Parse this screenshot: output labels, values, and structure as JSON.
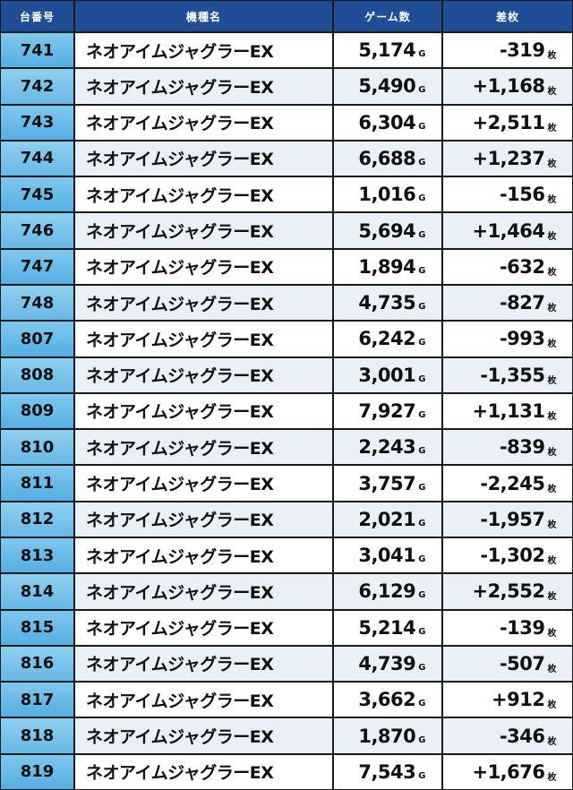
{
  "header": {
    "machine_no": "台番号",
    "model": "機種名",
    "games": "ゲーム数",
    "difference": "差枚"
  },
  "units": {
    "games": "G",
    "difference": "枚"
  },
  "rows": [
    {
      "no": "741",
      "model": "ネオアイムジャグラーEX",
      "games": "5,174",
      "diff": "-319"
    },
    {
      "no": "742",
      "model": "ネオアイムジャグラーEX",
      "games": "5,490",
      "diff": "+1,168"
    },
    {
      "no": "743",
      "model": "ネオアイムジャグラーEX",
      "games": "6,304",
      "diff": "+2,511"
    },
    {
      "no": "744",
      "model": "ネオアイムジャグラーEX",
      "games": "6,688",
      "diff": "+1,237"
    },
    {
      "no": "745",
      "model": "ネオアイムジャグラーEX",
      "games": "1,016",
      "diff": "-156"
    },
    {
      "no": "746",
      "model": "ネオアイムジャグラーEX",
      "games": "5,694",
      "diff": "+1,464"
    },
    {
      "no": "747",
      "model": "ネオアイムジャグラーEX",
      "games": "1,894",
      "diff": "-632"
    },
    {
      "no": "748",
      "model": "ネオアイムジャグラーEX",
      "games": "4,735",
      "diff": "-827"
    },
    {
      "no": "807",
      "model": "ネオアイムジャグラーEX",
      "games": "6,242",
      "diff": "-993"
    },
    {
      "no": "808",
      "model": "ネオアイムジャグラーEX",
      "games": "3,001",
      "diff": "-1,355"
    },
    {
      "no": "809",
      "model": "ネオアイムジャグラーEX",
      "games": "7,927",
      "diff": "+1,131"
    },
    {
      "no": "810",
      "model": "ネオアイムジャグラーEX",
      "games": "2,243",
      "diff": "-839"
    },
    {
      "no": "811",
      "model": "ネオアイムジャグラーEX",
      "games": "3,757",
      "diff": "-2,245"
    },
    {
      "no": "812",
      "model": "ネオアイムジャグラーEX",
      "games": "2,021",
      "diff": "-1,957"
    },
    {
      "no": "813",
      "model": "ネオアイムジャグラーEX",
      "games": "3,041",
      "diff": "-1,302"
    },
    {
      "no": "814",
      "model": "ネオアイムジャグラーEX",
      "games": "6,129",
      "diff": "+2,552"
    },
    {
      "no": "815",
      "model": "ネオアイムジャグラーEX",
      "games": "5,214",
      "diff": "-139"
    },
    {
      "no": "816",
      "model": "ネオアイムジャグラーEX",
      "games": "4,739",
      "diff": "-507"
    },
    {
      "no": "817",
      "model": "ネオアイムジャグラーEX",
      "games": "3,662",
      "diff": "+912"
    },
    {
      "no": "818",
      "model": "ネオアイムジャグラーEX",
      "games": "1,870",
      "diff": "-346"
    },
    {
      "no": "819",
      "model": "ネオアイムジャグラーEX",
      "games": "7,543",
      "diff": "+1,676"
    }
  ]
}
